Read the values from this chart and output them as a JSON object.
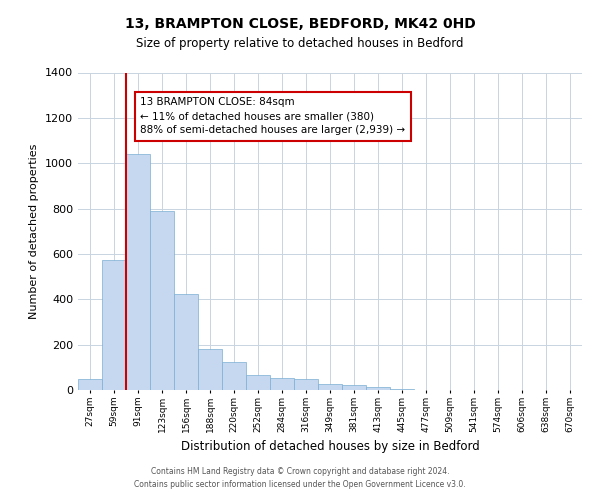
{
  "title": "13, BRAMPTON CLOSE, BEDFORD, MK42 0HD",
  "subtitle": "Size of property relative to detached houses in Bedford",
  "xlabel": "Distribution of detached houses by size in Bedford",
  "ylabel": "Number of detached properties",
  "bar_labels": [
    "27sqm",
    "59sqm",
    "91sqm",
    "123sqm",
    "156sqm",
    "188sqm",
    "220sqm",
    "252sqm",
    "284sqm",
    "316sqm",
    "349sqm",
    "381sqm",
    "413sqm",
    "445sqm",
    "477sqm",
    "509sqm",
    "541sqm",
    "574sqm",
    "606sqm",
    "638sqm",
    "670sqm"
  ],
  "bar_values": [
    50,
    575,
    1040,
    790,
    425,
    180,
    125,
    65,
    55,
    50,
    25,
    20,
    15,
    5,
    0,
    0,
    0,
    0,
    0,
    0,
    0
  ],
  "bar_color": "#c5d8f0",
  "bar_edge_color": "#7bafd4",
  "ylim": [
    0,
    1400
  ],
  "yticks": [
    0,
    200,
    400,
    600,
    800,
    1000,
    1200,
    1400
  ],
  "vline_color": "#cc0000",
  "annotation_text": "13 BRAMPTON CLOSE: 84sqm\n← 11% of detached houses are smaller (380)\n88% of semi-detached houses are larger (2,939) →",
  "annotation_box_color": "#ffffff",
  "annotation_box_edge": "#cc0000",
  "footer_line1": "Contains HM Land Registry data © Crown copyright and database right 2024.",
  "footer_line2": "Contains public sector information licensed under the Open Government Licence v3.0.",
  "background_color": "#ffffff",
  "grid_color": "#c8d4e0"
}
